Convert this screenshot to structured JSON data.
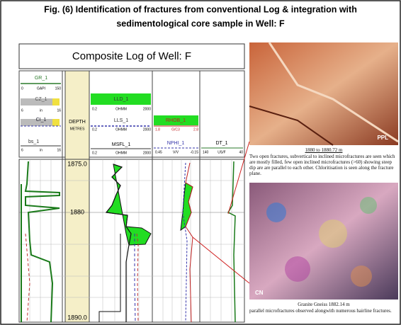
{
  "title": {
    "line1": "Fig. (6)  Identification of fractures from conventional Log & integration with",
    "line2": "sedimentological core sample in Well: F"
  },
  "log": {
    "title": "Composite Log of Well: F",
    "track1": {
      "gr": "GR_1",
      "gr_min": "0",
      "gr_unit": "GAPI",
      "gr_max": "150",
      "cz": "CZ_1",
      "ci": "CI_1",
      "bs": "bs_1",
      "cal_min": "6",
      "cal_unit": "in",
      "cal_max": "16"
    },
    "depth": {
      "label": "DEPTH",
      "unit": "METRES",
      "top": "1875.0",
      "mid": "1880",
      "bottom": "1890.0"
    },
    "track2": {
      "lld": "LLD_1",
      "lls": "LLS_1",
      "msfl": "MSFL_1",
      "min": "0.2",
      "unit": "OHMM",
      "max": "2000"
    },
    "track3": {
      "rhob": "RHOB_1",
      "rhob_min": "1.8",
      "rhob_unit": "G/C3",
      "rhob_max": "2.8",
      "nphi": "NPHI_1",
      "nphi_min": "0.45",
      "nphi_unit": "V/V",
      "nphi_max": "-0.15"
    },
    "track4": {
      "dt": "DT_1",
      "min": "140",
      "unit": "US/F",
      "max": "40"
    }
  },
  "photos": [
    {
      "tag": "PPL",
      "caption_title": "1880 to 1880.72 m",
      "caption": "Two open fractures, subvertical to inclined microfractures are seen which are mostly filled, few open inclined microfractures (>60) showing steep dip are are parallel to each other. Chloritisation is seen along the fracture plane."
    },
    {
      "tag": "CN",
      "caption_title": "Granite Gneiss 1882.14 m",
      "caption": "parallel microfractures observed alongwith numerous hairline fractures."
    }
  ]
}
